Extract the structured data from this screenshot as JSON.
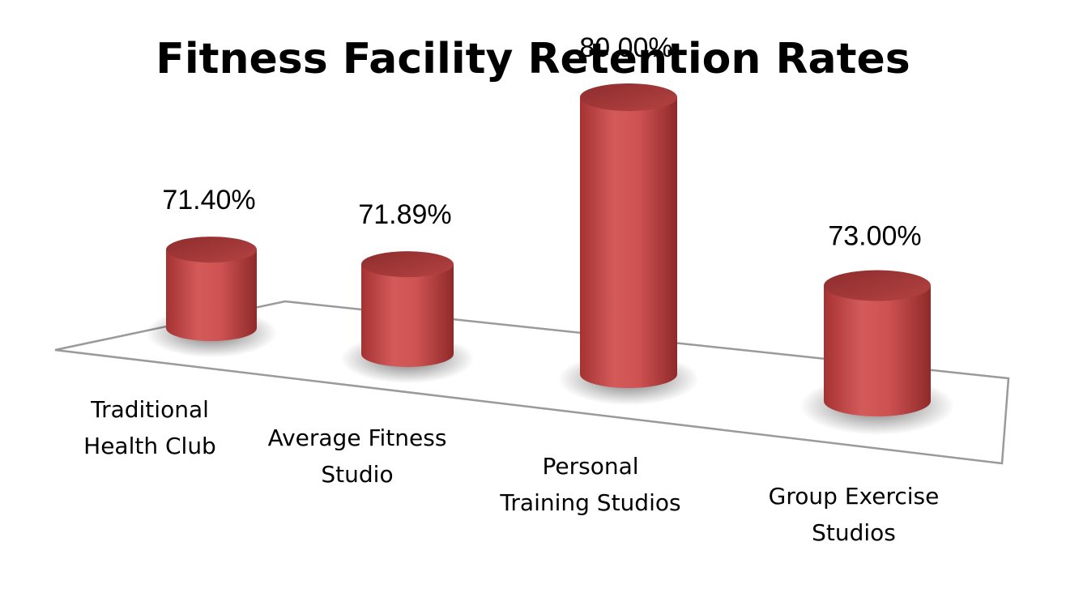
{
  "chart_data": {
    "type": "bar",
    "title": "Fitness Facility Retention Rates",
    "categories": [
      "Traditional Health Club",
      "Average Fitness Studio",
      "Personal Training Studios",
      "Group Exercise Studios"
    ],
    "category_lines": [
      [
        "Traditional",
        "Health Club"
      ],
      [
        "Average Fitness",
        "Studio"
      ],
      [
        "Personal",
        "Training Studios"
      ],
      [
        "Group Exercise",
        "Studios"
      ]
    ],
    "values": [
      71.4,
      71.89,
      80.0,
      73.0
    ],
    "value_labels": [
      "71.40%",
      "71.89%",
      "80.00%",
      "73.00%"
    ],
    "bar_shape": "cylinder",
    "bar_color": "#c44a4a",
    "xlabel": "",
    "ylabel": "",
    "grid": false,
    "legend": "none"
  }
}
